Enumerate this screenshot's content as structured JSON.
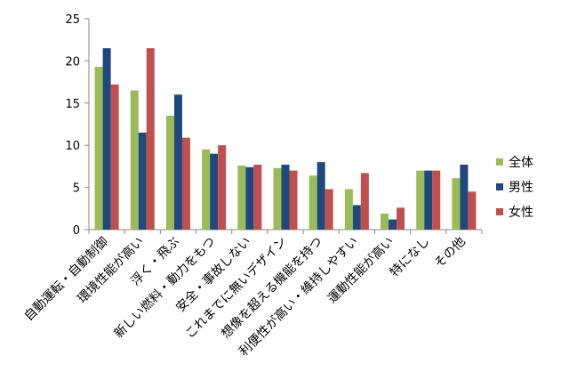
{
  "chart_data": {
    "type": "bar",
    "title": "",
    "xlabel": "",
    "ylabel": "",
    "ylim": [
      0,
      25
    ],
    "yticks": [
      0,
      5,
      10,
      15,
      20,
      25
    ],
    "grid": false,
    "legend_position": "right",
    "categories": [
      "自動運転・自動制御",
      "環境性能が高い",
      "浮く・飛ぶ",
      "新しい燃料・動力をもつ",
      "安全・事故しない",
      "これまでに無いデザイン",
      "想像を超える機能を持つ",
      "利便性が高い・維持しやすい",
      "運動性能が高い",
      "特になし",
      "その他"
    ],
    "series": [
      {
        "name": "全体",
        "color": "#9bbb59",
        "values": [
          19.3,
          16.5,
          13.5,
          9.5,
          7.6,
          7.3,
          6.4,
          4.8,
          1.9,
          7.0,
          6.1
        ]
      },
      {
        "name": "男性",
        "color": "#1f497d",
        "values": [
          21.5,
          11.5,
          16.0,
          9.0,
          7.4,
          7.7,
          8.0,
          2.9,
          1.2,
          7.0,
          7.7
        ]
      },
      {
        "name": "女性",
        "color": "#c0504d",
        "values": [
          17.2,
          21.5,
          10.9,
          10.0,
          7.7,
          7.0,
          4.8,
          6.7,
          2.6,
          7.0,
          4.5
        ]
      }
    ]
  }
}
